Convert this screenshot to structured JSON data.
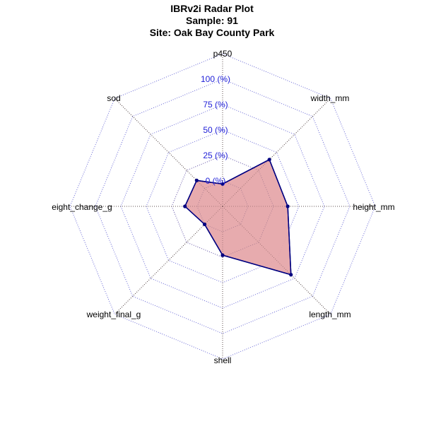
{
  "header": {
    "title": "IBRv2i Radar Plot",
    "sample": "Sample: 91",
    "site": "Site: Oak Bay County Park"
  },
  "colors": {
    "grid": "#6a6ad6",
    "ring_label": "#1f1fd8",
    "fill": "#e6a6aa",
    "stroke": "#000080",
    "point": "#000080"
  },
  "chart_data": {
    "type": "radar",
    "title": "IBRv2i Radar Plot",
    "subtitle": [
      "Sample: 91",
      "Site: Oak Bay County Park"
    ],
    "axes": [
      "p450",
      "width_mm",
      "height_mm",
      "length_mm",
      "shell",
      "weight_final_g",
      "eight_change_g",
      "sod"
    ],
    "ring_labels": [
      "0 (%)",
      "25 (%)",
      "50 (%)",
      "75 (%)",
      "100 (%)"
    ],
    "ring_values": [
      0,
      25,
      50,
      75,
      100
    ],
    "range": [
      0,
      100
    ],
    "values": [
      -3,
      40,
      39,
      70,
      23,
      0,
      12,
      11
    ],
    "grid": true
  }
}
